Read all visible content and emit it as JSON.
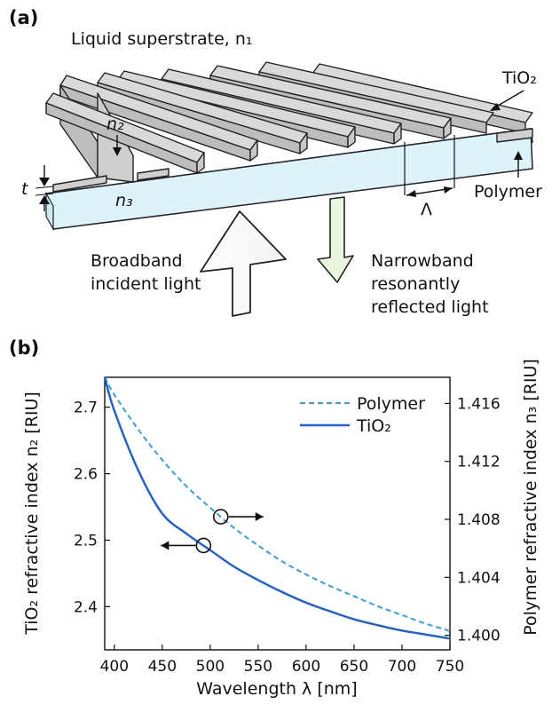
{
  "panel_a": {
    "label": "(a)",
    "superstrate_label": "Liquid superstrate, n₁",
    "n2_label": "n₂",
    "n3_label": "n₃",
    "t_label": "t",
    "tio2_label": "TiO₂",
    "polymer_label": "Polymer",
    "period_label": "Λ",
    "incident_label_1": "Broadband",
    "incident_label_2": "incident light",
    "reflected_label_1": "Narrowband",
    "reflected_label_2": "resonantly",
    "reflected_label_3": "reflected light"
  },
  "panel_b": {
    "label": "(b)"
  },
  "chart_data": {
    "type": "line",
    "xlabel": "Wavelength λ [nm]",
    "ylabel_left": "TiO₂ refractive index n₂ [RIU]",
    "ylabel_right": "Polymer refractive index n₃ [RIU]",
    "xlim": [
      390,
      750
    ],
    "ylim_left": [
      2.335,
      2.745
    ],
    "ylim_right": [
      1.399,
      1.4178
    ],
    "x_ticks": [
      400,
      450,
      500,
      550,
      600,
      650,
      700,
      750
    ],
    "y_left_ticks": [
      2.4,
      2.5,
      2.6,
      2.7
    ],
    "y_right_ticks": [
      1.4,
      1.404,
      1.408,
      1.412,
      1.416
    ],
    "legend_position": "top-right",
    "series": [
      {
        "name": "Polymer",
        "axis": "right",
        "style": "dashed",
        "color": "#2aa3e8",
        "x": [
          390,
          400,
          425,
          450,
          475,
          500,
          525,
          550,
          575,
          600,
          625,
          650,
          675,
          700,
          725,
          750
        ],
        "y": [
          1.4178,
          1.4166,
          1.4142,
          1.4121,
          1.4103,
          1.4088,
          1.4074,
          1.4062,
          1.4051,
          1.4042,
          1.4034,
          1.4027,
          1.402,
          1.4014,
          1.4008,
          1.4003
        ]
      },
      {
        "name": "TiO₂",
        "axis": "left",
        "style": "solid",
        "color": "#1a5fdc",
        "x": [
          390,
          400,
          425,
          450,
          475,
          500,
          525,
          550,
          575,
          600,
          625,
          650,
          675,
          700,
          725,
          750
        ],
        "y": [
          2.745,
          2.695,
          2.605,
          2.54,
          2.51,
          2.485,
          2.46,
          2.44,
          2.422,
          2.406,
          2.393,
          2.381,
          2.372,
          2.364,
          2.358,
          2.352
        ]
      }
    ],
    "markers": [
      {
        "series": "TiO₂",
        "x": 493,
        "axis_direction": "left"
      },
      {
        "series": "Polymer",
        "x": 511,
        "axis_direction": "right"
      }
    ]
  }
}
